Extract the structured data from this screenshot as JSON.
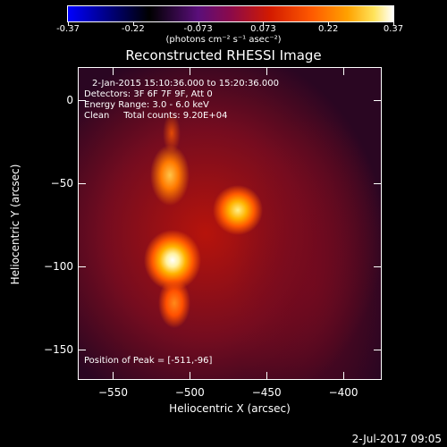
{
  "colorbar": {
    "ticks": [
      "-0.37",
      "-0.22",
      "-0.073",
      "0.073",
      "0.22",
      "0.37"
    ],
    "units": "(photons cm⁻² s⁻¹ asec⁻²)"
  },
  "title": "Reconstructed RHESSI Image",
  "annotations": {
    "time_range": "2-Jan-2015 15:10:36.000 to 15:20:36.000",
    "detectors": "Detectors: 3F 6F 7F 9F, Att 0",
    "energy": "Energy Range: 3.0 - 6.0 keV",
    "clean": "Clean     Total counts: 9.20E+04",
    "peak": "Position of Peak = [-511,-96]"
  },
  "axes": {
    "xlabel": "Heliocentric X (arcsec)",
    "ylabel": "Heliocentric Y (arcsec)",
    "xticks": [
      "-550",
      "-500",
      "-450",
      "-400"
    ],
    "yticks": [
      "0",
      "-50",
      "-100",
      "-150"
    ]
  },
  "datestamp": "2-Jul-2017 09:05",
  "chart_data": {
    "type": "heatmap",
    "title": "Reconstructed RHESSI Image",
    "xlabel": "Heliocentric X (arcsec)",
    "ylabel": "Heliocentric Y (arcsec)",
    "xlim": [
      -573,
      -375
    ],
    "ylim": [
      -168,
      20
    ],
    "colorbar_range": [
      -0.37,
      0.37
    ],
    "sources": [
      {
        "x": -511,
        "y": -96,
        "intensity": 0.37
      },
      {
        "x": -469,
        "y": -66,
        "intensity": 0.28
      },
      {
        "x": -513,
        "y": -45,
        "intensity": 0.22
      },
      {
        "x": -510,
        "y": -122,
        "intensity": 0.18
      }
    ]
  }
}
